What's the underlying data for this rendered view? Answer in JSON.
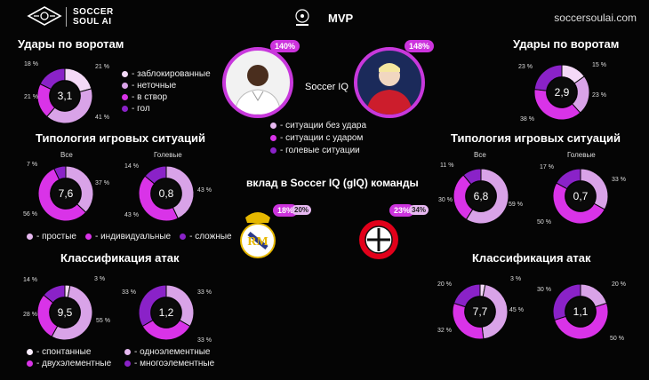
{
  "brand": {
    "name_line1": "SOCCER",
    "name_line2": "SOUL AI",
    "site": "soccersoulai.com"
  },
  "header": {
    "title": "MVP",
    "league_logo": "champions-league-logo"
  },
  "colors": {
    "c_light": "#f4d9f7",
    "c_mid": "#d9a3e8",
    "c_magenta": "#d933e8",
    "c_purple": "#8a22c8",
    "ring_inner": "#0a0a0a",
    "track": "#222222"
  },
  "shots_legend": [
    "- заблокированные",
    "- неточные",
    "- в створ",
    "- гол"
  ],
  "iq_label": "Soccer IQ",
  "iq_legend": [
    "- ситуации без удара",
    "- ситуации с ударом",
    "- голевые ситуации"
  ],
  "team_contrib_title": "вклад в Soccer IQ (gIQ) команды",
  "typology_legend": [
    "- простые",
    "- индивидуальные",
    "- сложные"
  ],
  "attack_legend": [
    "- спонтанные",
    "- одноэлементные",
    "- двухэлементные",
    "- многоэлементные"
  ],
  "left": {
    "shots_title": "Удары по воротам",
    "typology_title": "Типология игровых ситуаций",
    "attack_title": "Классификация атак",
    "player_badge": "140%",
    "team_badge_main": "18%",
    "team_badge_small": "20%",
    "team_logo": "real-madrid-crest"
  },
  "right": {
    "shots_title": "Удары по воротам",
    "typology_title": "Типология игровых ситуаций",
    "attack_title": "Классификация атак",
    "player_badge": "148%",
    "team_badge_main": "23%",
    "team_badge_small": "34%",
    "team_logo": "bayer-leverkusen-crest"
  },
  "sub_labels": {
    "all": "Все",
    "goal": "Голевые"
  },
  "chart_data": [
    {
      "id": "L-shots",
      "type": "pie",
      "center_value": "3,1",
      "segments": [
        {
          "name": "заблокированные",
          "value": 21
        },
        {
          "name": "неточные",
          "value": 41
        },
        {
          "name": "в створ",
          "value": 21
        },
        {
          "name": "гол",
          "value": 18
        }
      ],
      "labels": [
        "21 %",
        "41 %",
        "21 %",
        "18 %"
      ]
    },
    {
      "id": "R-shots",
      "type": "pie",
      "center_value": "2,9",
      "segments": [
        {
          "name": "заблокированные",
          "value": 15
        },
        {
          "name": "неточные",
          "value": 23
        },
        {
          "name": "в створ",
          "value": 38
        },
        {
          "name": "гол",
          "value": 23
        }
      ],
      "labels": [
        "15 %",
        "23 %",
        "38 %",
        "23 %"
      ]
    },
    {
      "id": "L-typ-all",
      "type": "pie",
      "center_value": "7,6",
      "segments": [
        {
          "name": "простые",
          "value": 37
        },
        {
          "name": "индивидуальные",
          "value": 56
        },
        {
          "name": "сложные",
          "value": 7
        }
      ],
      "labels": [
        "37 %",
        "56 %",
        "7 %"
      ]
    },
    {
      "id": "L-typ-goal",
      "type": "pie",
      "center_value": "0,8",
      "segments": [
        {
          "name": "простые",
          "value": 43
        },
        {
          "name": "индивидуальные",
          "value": 43
        },
        {
          "name": "сложные",
          "value": 14
        }
      ],
      "labels": [
        "43 %",
        "43 %",
        "14 %"
      ]
    },
    {
      "id": "R-typ-all",
      "type": "pie",
      "center_value": "6,8",
      "segments": [
        {
          "name": "простые",
          "value": 59
        },
        {
          "name": "индивидуальные",
          "value": 30
        },
        {
          "name": "сложные",
          "value": 11
        }
      ],
      "labels": [
        "59 %",
        "30 %",
        "11 %"
      ]
    },
    {
      "id": "R-typ-goal",
      "type": "pie",
      "center_value": "0,7",
      "segments": [
        {
          "name": "простые",
          "value": 33
        },
        {
          "name": "индивидуальные",
          "value": 50
        },
        {
          "name": "сложные",
          "value": 17
        }
      ],
      "labels": [
        "33 %",
        "50 %",
        "17 %"
      ]
    },
    {
      "id": "L-att-all",
      "type": "pie",
      "center_value": "9,5",
      "segments": [
        {
          "name": "спонтанные",
          "value": 3
        },
        {
          "name": "одноэлементные",
          "value": 55
        },
        {
          "name": "двухэлементные",
          "value": 28
        },
        {
          "name": "многоэлементные",
          "value": 14
        }
      ],
      "labels": [
        "3 %",
        "55 %",
        "28 %",
        "14 %"
      ]
    },
    {
      "id": "L-att-goal",
      "type": "pie",
      "center_value": "1,2",
      "segments": [
        {
          "name": "спонтанные",
          "value": 0
        },
        {
          "name": "одноэлементные",
          "value": 33
        },
        {
          "name": "двухэлементные",
          "value": 33
        },
        {
          "name": "многоэлементные",
          "value": 33
        }
      ],
      "labels": [
        "33 %",
        "33 %",
        "33 %"
      ]
    },
    {
      "id": "R-att-all",
      "type": "pie",
      "center_value": "7,7",
      "segments": [
        {
          "name": "спонтанные",
          "value": 3
        },
        {
          "name": "одноэлементные",
          "value": 45
        },
        {
          "name": "двухэлементные",
          "value": 32
        },
        {
          "name": "многоэлементные",
          "value": 20
        }
      ],
      "labels": [
        "3 %",
        "45 %",
        "32 %",
        "20 %"
      ]
    },
    {
      "id": "R-att-goal",
      "type": "pie",
      "center_value": "1,1",
      "segments": [
        {
          "name": "спонтанные",
          "value": 0
        },
        {
          "name": "одноэлементные",
          "value": 20
        },
        {
          "name": "двухэлементные",
          "value": 50
        },
        {
          "name": "многоэлементные",
          "value": 30
        }
      ],
      "labels": [
        "20 %",
        "50 %",
        "30 %"
      ]
    }
  ]
}
